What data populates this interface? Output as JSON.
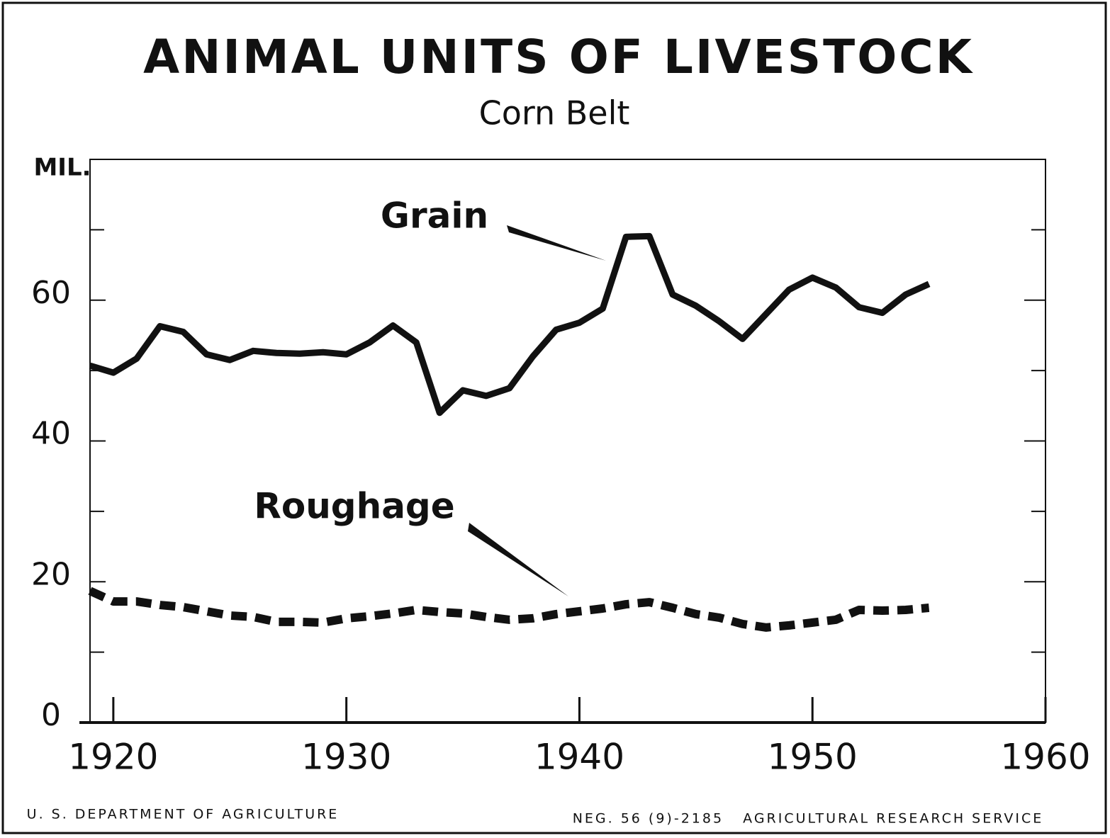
{
  "chart_data": {
    "type": "line",
    "title": "ANIMAL UNITS OF LIVESTOCK",
    "subtitle": "Corn Belt",
    "y_label": "MIL.",
    "x": [
      1919,
      1920,
      1921,
      1922,
      1923,
      1924,
      1925,
      1926,
      1927,
      1928,
      1929,
      1930,
      1931,
      1932,
      1933,
      1934,
      1935,
      1936,
      1937,
      1938,
      1939,
      1940,
      1941,
      1942,
      1943,
      1944,
      1945,
      1946,
      1947,
      1948,
      1949,
      1950,
      1951,
      1952,
      1953,
      1954,
      1955
    ],
    "series": [
      {
        "name": "Grain",
        "color": "#111111",
        "dash": false,
        "values": [
          50.7,
          49.7,
          51.7,
          56.3,
          55.5,
          52.3,
          51.5,
          52.8,
          52.5,
          52.4,
          52.6,
          52.3,
          54,
          56.4,
          54,
          44,
          47.2,
          46.4,
          47.5,
          52,
          55.8,
          56.8,
          58.8,
          69,
          69.1,
          60.8,
          59.2,
          57,
          54.5,
          58,
          61.5,
          63.2,
          61.8,
          59,
          58.2,
          60.8,
          62.3
        ]
      },
      {
        "name": "Roughage",
        "color": "#111111",
        "dash": true,
        "values": [
          18.7,
          17.2,
          17.2,
          16.7,
          16.4,
          15.8,
          15.2,
          15,
          14.3,
          14.3,
          14.2,
          14.8,
          15.1,
          15.5,
          16,
          15.7,
          15.5,
          15,
          14.6,
          14.8,
          15.4,
          15.8,
          16.2,
          16.8,
          17.1,
          16.3,
          15.4,
          14.9,
          14,
          13.5,
          13.8,
          14.2,
          14.6,
          16,
          15.9,
          16,
          16.3
        ]
      }
    ],
    "xlim": [
      1919,
      1960
    ],
    "xticks": [
      1920,
      1930,
      1940,
      1950,
      1960
    ],
    "ylim": [
      0,
      80
    ],
    "yticks": [
      0,
      20,
      40,
      60
    ],
    "y_minor_ticks": [
      10,
      30,
      50,
      70
    ],
    "footer_left": "U. S. DEPARTMENT OF AGRICULTURE",
    "footer_right": "NEG. 56 (9)-2185   AGRICULTURAL RESEARCH SERVICE"
  }
}
